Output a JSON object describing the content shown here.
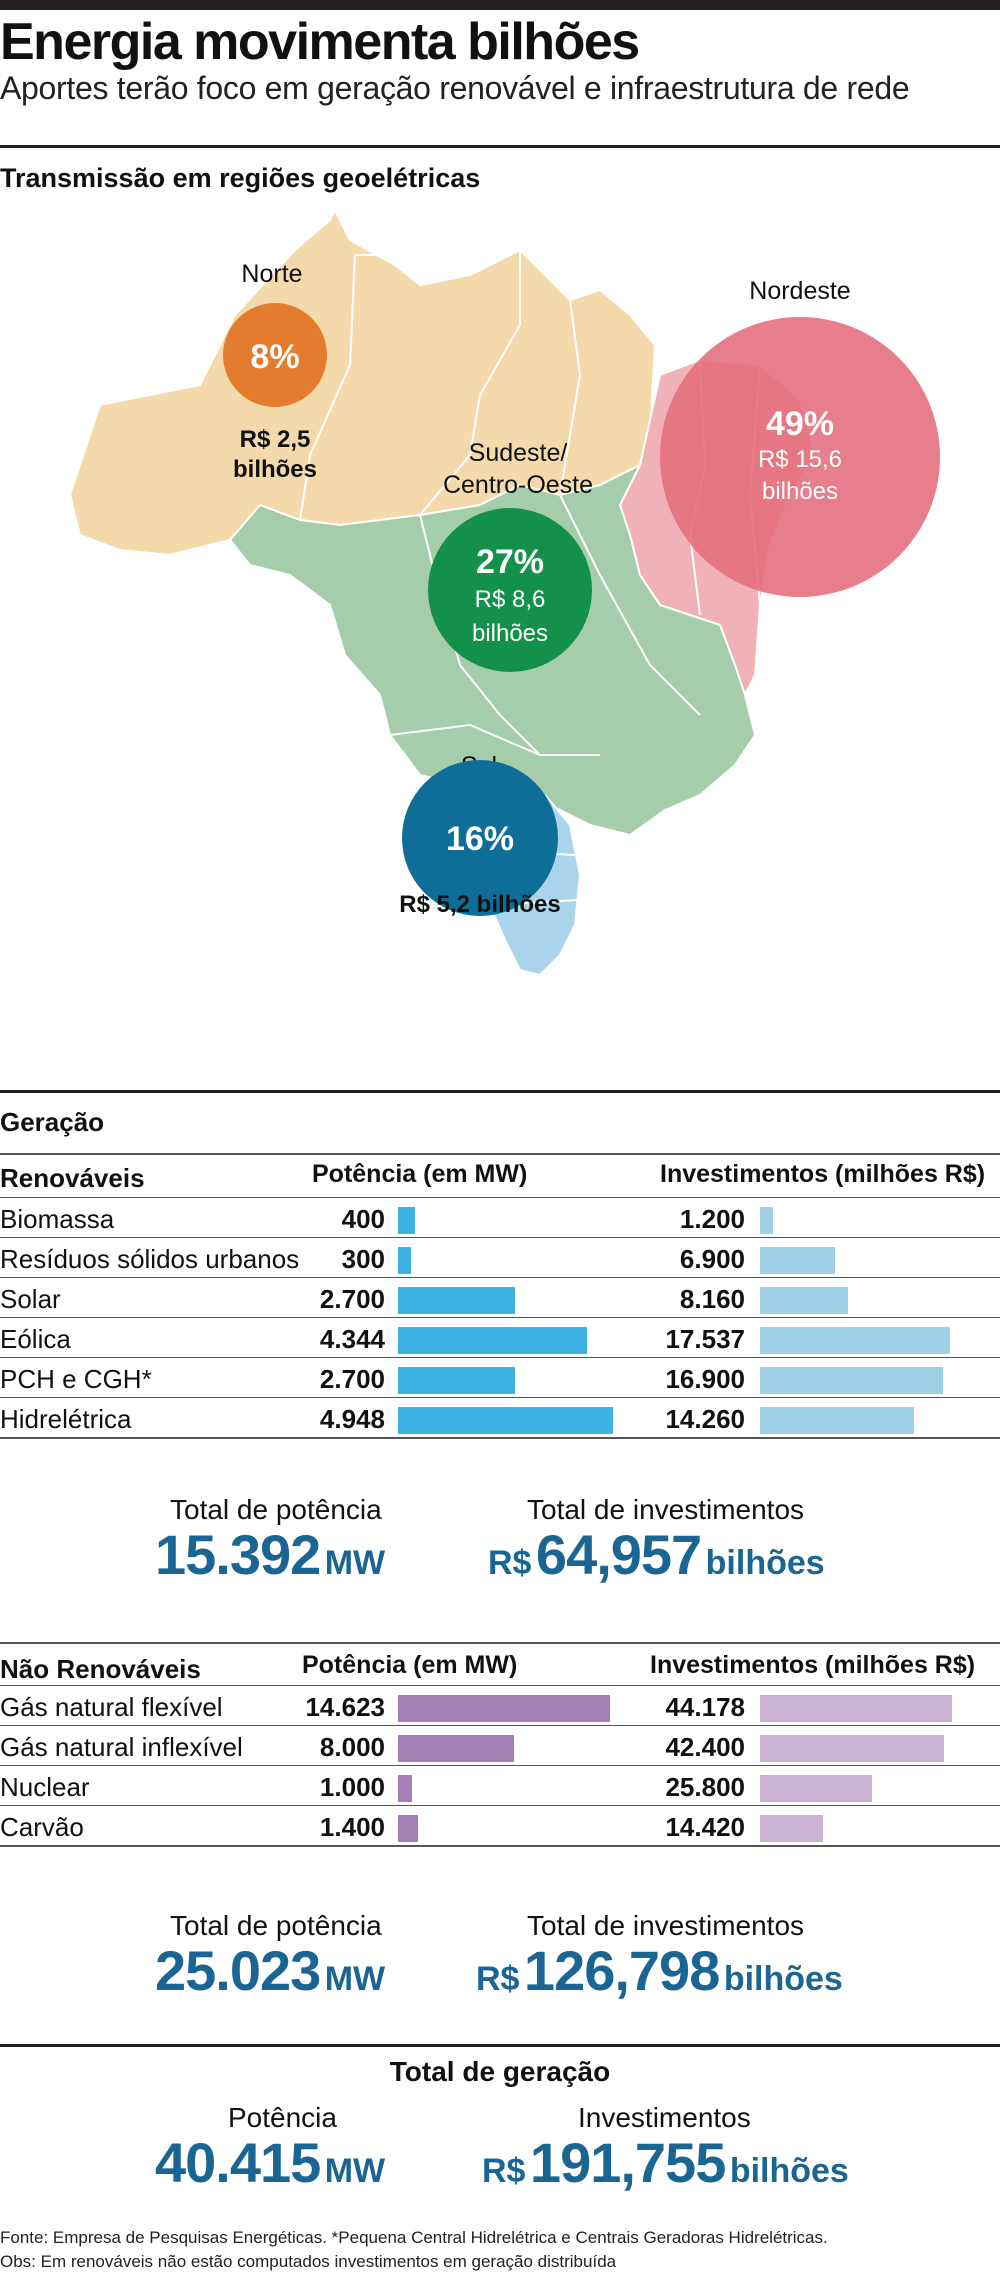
{
  "header": {
    "title": "Energia movimenta bilhões",
    "subtitle": "Aportes terão foco em geração renovável e infraestrutura de rede"
  },
  "colors": {
    "norte": "#e37c2e",
    "nordeste": "#e0707d",
    "sudeste": "#13904a",
    "sul": "#0e6e97",
    "renovavel_potencia": "#3db2e3",
    "renovavel_investimento": "#9fd0e8",
    "nao_renovavel_potencia": "#a47fb6",
    "nao_renovavel_investimento": "#cbb1d6",
    "total_blue": "#1a6592"
  },
  "chart_data": [
    {
      "type": "map",
      "title": "Transmissão em regiões geoelétricas",
      "regions": [
        {
          "name": "Norte",
          "percent": "8%",
          "value_label": "R$ 2,5 bilhões",
          "value_line1": "R$ 2,5",
          "value_line2": "bilhões",
          "share": 8,
          "value_billions": 2.5
        },
        {
          "name": "Nordeste",
          "percent": "49%",
          "value_label": "R$ 15,6 bilhões",
          "value_line1": "R$ 15,6",
          "value_line2": "bilhões",
          "share": 49,
          "value_billions": 15.6
        },
        {
          "name": "Sudeste/ Centro-Oeste",
          "name_line1": "Sudeste/",
          "name_line2": "Centro-Oeste",
          "percent": "27%",
          "value_label": "R$ 8,6 bilhões",
          "value_line1": "R$ 8,6",
          "value_line2": "bilhões",
          "share": 27,
          "value_billions": 8.6
        },
        {
          "name": "Sul",
          "percent": "16%",
          "value_label": "R$ 5,2 bilhões",
          "share": 16,
          "value_billions": 5.2
        }
      ]
    },
    {
      "type": "bar",
      "title": "Geração",
      "group": "Renováveis",
      "columns": [
        "Potência (em MW)",
        "Investimentos (milhões R$)"
      ],
      "categories": [
        "Biomassa",
        "Resíduos sólidos urbanos",
        "Solar",
        "Eólica",
        "PCH e CGH*",
        "Hidrelétrica"
      ],
      "series": [
        {
          "name": "Potência (em MW)",
          "values": [
            400,
            300,
            2700,
            4344,
            2700,
            4948
          ],
          "labels": [
            "400",
            "300",
            "2.700",
            "4.344",
            "2.700",
            "4.948"
          ]
        },
        {
          "name": "Investimentos (milhões R$)",
          "values": [
            1200,
            6900,
            8160,
            17537,
            16900,
            14260
          ],
          "labels": [
            "1.200",
            "6.900",
            "8.160",
            "17.537",
            "16.900",
            "14.260"
          ]
        }
      ],
      "totals": {
        "potencia_label": "Total de potência",
        "potencia_value": "15.392",
        "potencia_unit": "MW",
        "investimentos_label": "Total de investimentos",
        "investimentos_prefix": "R$",
        "investimentos_value": "64,957",
        "investimentos_unit": "bilhões"
      }
    },
    {
      "type": "bar",
      "group": "Não Renováveis",
      "columns": [
        "Potência (em MW)",
        "Investimentos (milhões R$)"
      ],
      "categories": [
        "Gás natural flexível",
        "Gás natural inflexível",
        "Nuclear",
        "Carvão"
      ],
      "series": [
        {
          "name": "Potência (em MW)",
          "values": [
            14623,
            8000,
            1000,
            1400
          ],
          "labels": [
            "14.623",
            "8.000",
            "1.000",
            "1.400"
          ]
        },
        {
          "name": "Investimentos (milhões R$)",
          "values": [
            44178,
            42400,
            25800,
            14420
          ],
          "labels": [
            "44.178",
            "42.400",
            "25.800",
            "14.420"
          ]
        }
      ],
      "totals": {
        "potencia_label": "Total de potência",
        "potencia_value": "25.023",
        "potencia_unit": "MW",
        "investimentos_label": "Total de investimentos",
        "investimentos_prefix": "R$",
        "investimentos_value": "126,798",
        "investimentos_unit": "bilhões"
      }
    }
  ],
  "total_geracao": {
    "title": "Total de geração",
    "potencia_label": "Potência",
    "potencia_value": "40.415",
    "potencia_unit": "MW",
    "investimentos_label": "Investimentos",
    "investimentos_prefix": "R$",
    "investimentos_value": "191,755",
    "investimentos_unit": "bilhões"
  },
  "footer": {
    "source": "Fonte: Empresa de Pesquisas Energéticas. *Pequena Central Hidrelétrica e  Centrais Geradoras Hidrelétricas.",
    "note": "Obs: Em renováveis não estão computados investimentos em geração distribuída"
  }
}
